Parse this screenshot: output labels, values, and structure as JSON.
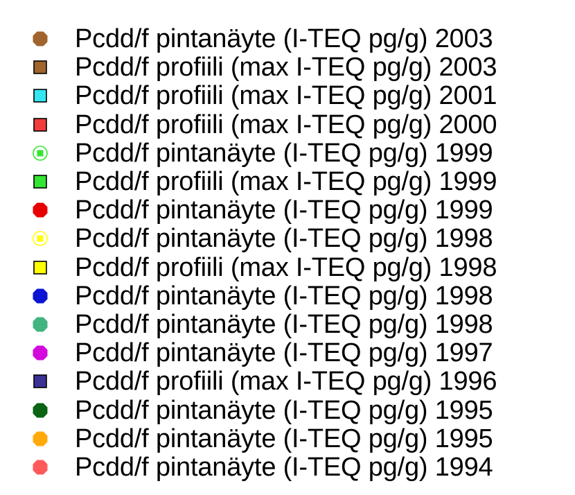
{
  "chart_data": {
    "type": "legend",
    "legend": [
      {
        "label": "Pcdd/f pintanäyte (I-TEQ pg/g) 2003",
        "marker": "octagon",
        "color": "#a0642e"
      },
      {
        "label": "Pcdd/f profiili (max I-TEQ pg/g) 2003",
        "marker": "square",
        "color": "#a0642e"
      },
      {
        "label": "Pcdd/f profiili (max I-TEQ pg/g) 2001",
        "marker": "square",
        "color": "#33e6f2"
      },
      {
        "label": "Pcdd/f profiili (max I-TEQ pg/g) 2000",
        "marker": "square",
        "color": "#f23c3c"
      },
      {
        "label": "Pcdd/f pintanäyte (I-TEQ pg/g) 1999",
        "marker": "ring-square",
        "color": "#33e633"
      },
      {
        "label": "Pcdd/f profiili (max I-TEQ pg/g) 1999",
        "marker": "square",
        "color": "#33e633"
      },
      {
        "label": "Pcdd/f pintanäyte (I-TEQ pg/g) 1999",
        "marker": "octagon",
        "color": "#e60000"
      },
      {
        "label": "Pcdd/f pintanäyte (I-TEQ pg/g) 1998",
        "marker": "ring-square",
        "color": "#ffff00"
      },
      {
        "label": "Pcdd/f profiili (max I-TEQ pg/g) 1998",
        "marker": "square",
        "color": "#ffff00"
      },
      {
        "label": "Pcdd/f pintanäyte (I-TEQ pg/g) 1998",
        "marker": "octagon",
        "color": "#0a14d2"
      },
      {
        "label": "Pcdd/f pintanäyte (I-TEQ pg/g) 1998",
        "marker": "octagon",
        "color": "#41b482"
      },
      {
        "label": "Pcdd/f pintanäyte (I-TEQ pg/g) 1997",
        "marker": "octagon",
        "color": "#d20adc"
      },
      {
        "label": "Pcdd/f profiili (max I-TEQ pg/g) 1996",
        "marker": "square",
        "color": "#3c3296"
      },
      {
        "label": "Pcdd/f pintanäyte (I-TEQ pg/g) 1995",
        "marker": "octagon",
        "color": "#0a6414"
      },
      {
        "label": "Pcdd/f pintanäyte (I-TEQ pg/g) 1995",
        "marker": "octagon",
        "color": "#ffaa0a"
      },
      {
        "label": "Pcdd/f pintanäyte (I-TEQ pg/g) 1994",
        "marker": "octagon",
        "color": "#ff5a5a"
      }
    ]
  }
}
